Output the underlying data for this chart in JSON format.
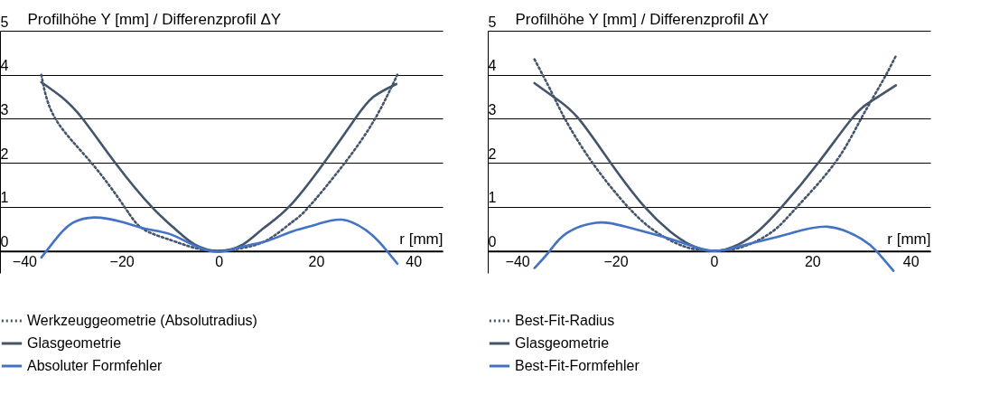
{
  "chart_data": [
    {
      "type": "line",
      "ylabel": "Profilhöhe Y [mm] / Differenzprofil ΔY",
      "xlabel": "r [mm]",
      "xlim": [
        -45,
        46
      ],
      "ylim": [
        -0.5,
        5
      ],
      "xticks": [
        -40,
        -20,
        0,
        20,
        40
      ],
      "yticks": [
        0,
        1,
        2,
        3,
        4,
        5
      ],
      "grid": "y",
      "legend": "bottom",
      "series": [
        {
          "name": "Werkzeuggeometrie (Absolutradius)",
          "color": "#44546a",
          "line_style": "dotted",
          "x": [
            -36.5,
            -33.6,
            -26.2,
            -19.4,
            -15.6,
            -10,
            -5,
            0,
            5,
            10,
            15,
            18.5,
            25.9,
            32.1,
            36.7
          ],
          "values": [
            4.0,
            3,
            2,
            1,
            0.5,
            0.25,
            0.07,
            0,
            0.07,
            0.25,
            0.65,
            1,
            2,
            3,
            4.0
          ]
        },
        {
          "name": "Glasgeometrie",
          "color": "#44546a",
          "line_style": "solid",
          "x": [
            -36.5,
            -32.4,
            -28,
            -21.3,
            -13.8,
            -9,
            -5,
            0,
            5,
            9,
            14.4,
            21.6,
            28,
            31.8,
            36.5
          ],
          "values": [
            3.83,
            3.5,
            3,
            2,
            1,
            0.5,
            0.15,
            0,
            0.15,
            0.5,
            1,
            2,
            3,
            3.5,
            3.79
          ]
        },
        {
          "name": "Absoluter Formfehler",
          "color": "#4472c4",
          "line_style": "solid",
          "x": [
            -36.5,
            -33,
            -30,
            -25.6,
            -20,
            -15,
            -10,
            -5,
            0,
            5,
            10,
            15,
            20,
            25.3,
            30,
            33,
            36.7
          ],
          "values": [
            -0.15,
            0.34,
            0.64,
            0.76,
            0.66,
            0.5,
            0.38,
            0.12,
            -0.02,
            0.1,
            0.23,
            0.44,
            0.6,
            0.71,
            0.49,
            0.2,
            -0.29
          ]
        }
      ]
    },
    {
      "type": "line",
      "ylabel": "Profilhöhe Y [mm] / Differenzprofil ΔY",
      "xlabel": "r [mm]",
      "xlim": [
        -46,
        44
      ],
      "ylim": [
        -0.5,
        5
      ],
      "xticks": [
        -40,
        -20,
        0,
        20,
        40
      ],
      "yticks": [
        0,
        1,
        2,
        3,
        4,
        5
      ],
      "grid": "y",
      "legend": "bottom",
      "series": [
        {
          "name": "Best-Fit-Radius",
          "color": "#44546a",
          "line_style": "dotted",
          "x": [
            -36.5,
            -33,
            -30.3,
            -24.7,
            -17.5,
            -12,
            -6,
            0,
            6,
            12,
            16.9,
            24.6,
            29.9,
            34,
            37
          ],
          "values": [
            4.35,
            3.6,
            3,
            2,
            1,
            0.45,
            0.1,
            0,
            0.1,
            0.45,
            1,
            2,
            3,
            3.8,
            4.43
          ]
        },
        {
          "name": "Glasgeometrie",
          "color": "#44546a",
          "line_style": "solid",
          "x": [
            -36.5,
            -32,
            -27.5,
            -21,
            -14.1,
            -9,
            -5,
            0,
            5,
            9,
            13.8,
            21.2,
            28,
            32,
            37
          ],
          "values": [
            3.81,
            3.45,
            3,
            2,
            1,
            0.45,
            0.15,
            0,
            0.15,
            0.45,
            1,
            2,
            3,
            3.4,
            3.76
          ]
        },
        {
          "name": "Best-Fit-Formfehler",
          "color": "#4472c4",
          "line_style": "solid",
          "x": [
            -36.5,
            -33.4,
            -30,
            -24,
            -18,
            -10,
            -5,
            0,
            5,
            10,
            15,
            23.1,
            30,
            33,
            36.5
          ],
          "values": [
            -0.39,
            0,
            0.4,
            0.64,
            0.55,
            0.31,
            0.13,
            0,
            0.1,
            0.24,
            0.38,
            0.55,
            0.27,
            0,
            -0.45
          ]
        }
      ]
    }
  ]
}
